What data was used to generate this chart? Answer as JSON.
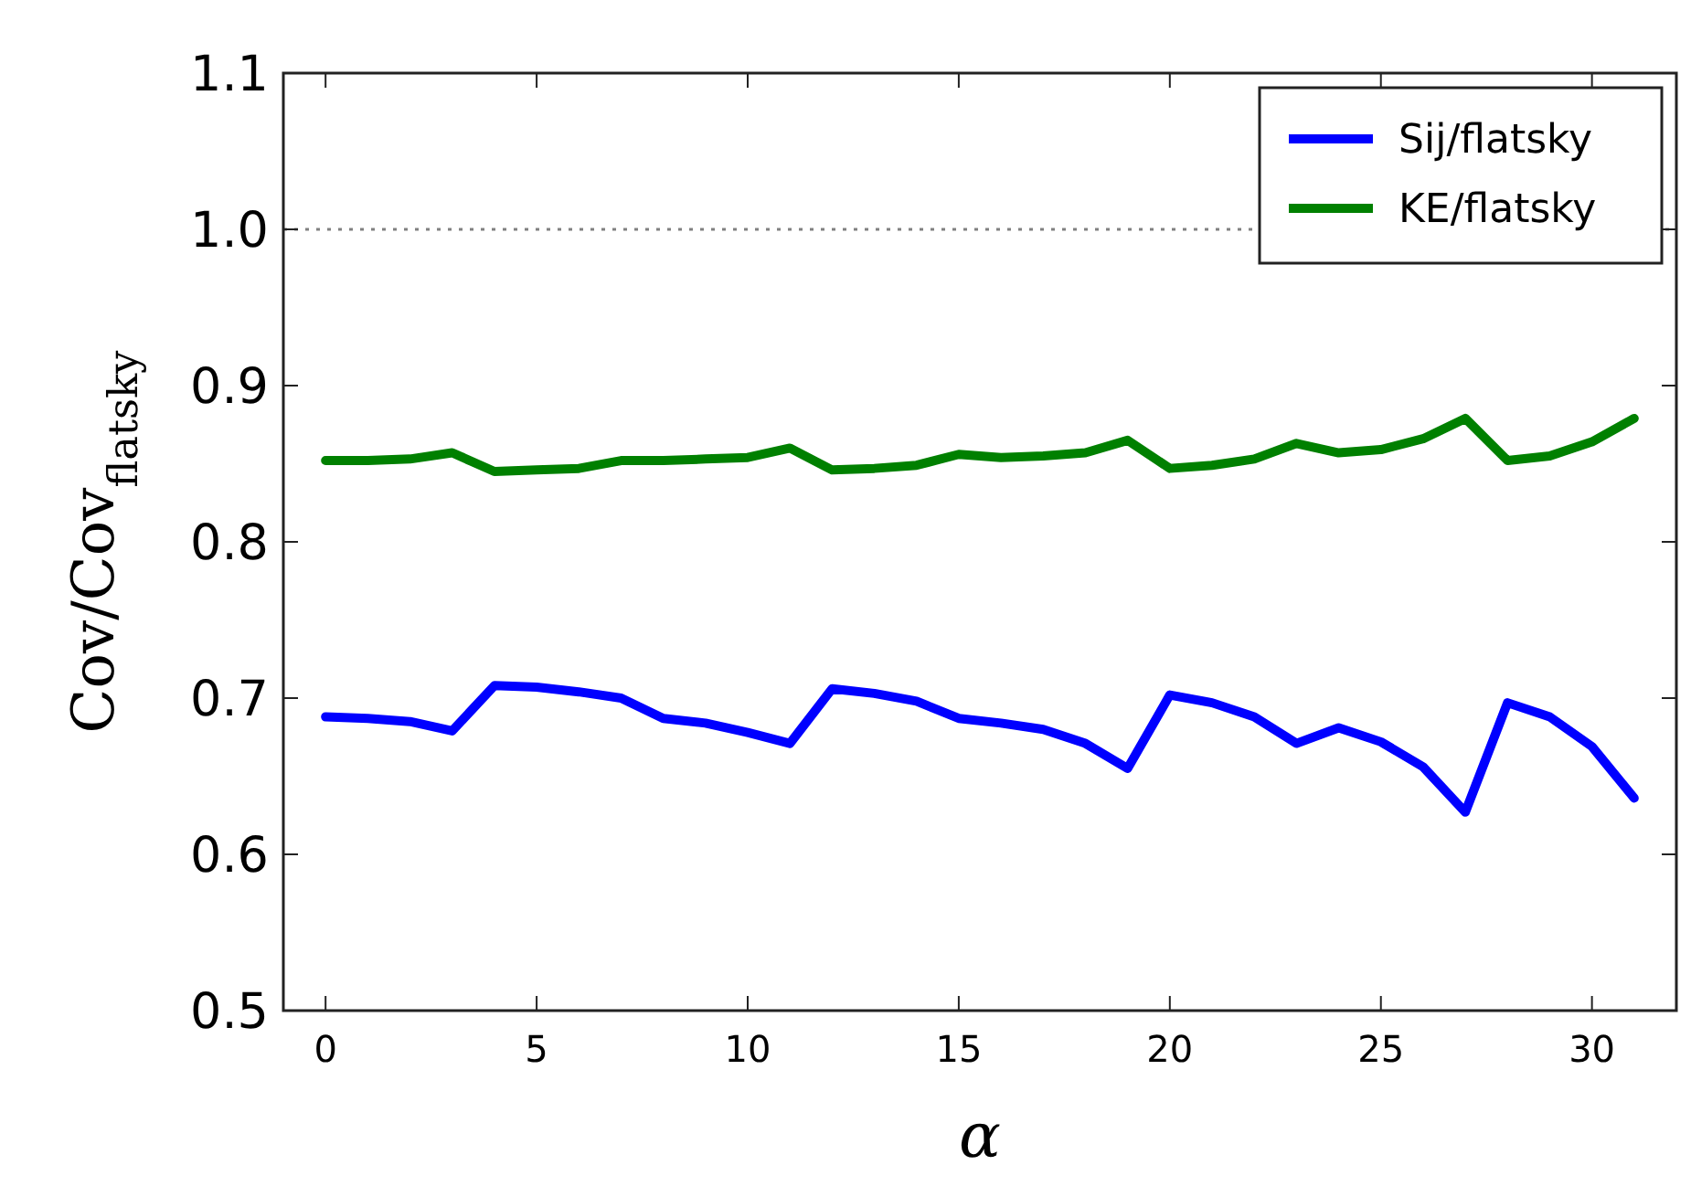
{
  "chart_data": {
    "type": "line",
    "xlabel": "α",
    "ylabel": "Cov/Cov$_{flatsky}$",
    "x": [
      0,
      1,
      2,
      3,
      4,
      5,
      6,
      7,
      8,
      9,
      10,
      11,
      12,
      13,
      14,
      15,
      16,
      17,
      18,
      19,
      20,
      21,
      22,
      23,
      24,
      25,
      26,
      27,
      28,
      29,
      30,
      31
    ],
    "series": [
      {
        "name": "Sij/flatsky",
        "color": "#0000ff",
        "values": [
          0.688,
          0.687,
          0.685,
          0.679,
          0.708,
          0.707,
          0.704,
          0.7,
          0.687,
          0.684,
          0.678,
          0.671,
          0.706,
          0.703,
          0.698,
          0.687,
          0.684,
          0.68,
          0.671,
          0.655,
          0.702,
          0.697,
          0.688,
          0.671,
          0.681,
          0.672,
          0.656,
          0.627,
          0.697,
          0.688,
          0.669,
          0.636
        ]
      },
      {
        "name": "KE/flatsky",
        "color": "#008000",
        "values": [
          0.852,
          0.852,
          0.853,
          0.857,
          0.845,
          0.846,
          0.847,
          0.852,
          0.852,
          0.853,
          0.854,
          0.86,
          0.846,
          0.847,
          0.849,
          0.856,
          0.854,
          0.855,
          0.857,
          0.865,
          0.847,
          0.849,
          0.853,
          0.863,
          0.857,
          0.859,
          0.866,
          0.879,
          0.852,
          0.855,
          0.864,
          0.879
        ]
      }
    ],
    "xlim": [
      -1,
      32
    ],
    "ylim": [
      0.5,
      1.1
    ],
    "xticks": [
      0,
      5,
      10,
      15,
      20,
      25,
      30
    ],
    "yticks": [
      {
        "value": 0.5,
        "label": "0.5"
      },
      {
        "value": 0.6,
        "label": "0.6"
      },
      {
        "value": 0.7,
        "label": "0.7"
      },
      {
        "value": 0.8,
        "label": "0.8"
      },
      {
        "value": 0.9,
        "label": "0.9"
      },
      {
        "value": 1.0,
        "label": "1.0"
      },
      {
        "value": 1.1,
        "label": "1.1"
      }
    ],
    "ref_lines": [
      {
        "axis": "y",
        "value": 1.0,
        "color": "#808080",
        "line_style": "dotted"
      }
    ],
    "legend": "top right",
    "grid": false,
    "line_style": "solid",
    "marker": "none"
  }
}
